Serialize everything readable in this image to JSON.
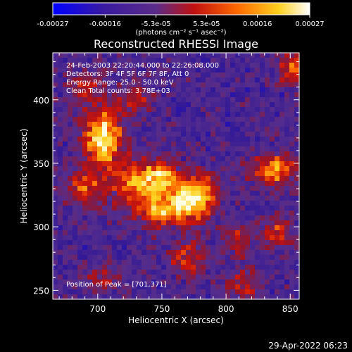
{
  "chart_data": {
    "type": "heatmap",
    "title": "Reconstructed RHESSI Image",
    "xlabel": "Heliocentric X (arcsec)",
    "ylabel": "Heliocentric Y (arcsec)",
    "xlim": [
      665,
      857
    ],
    "ylim": [
      243,
      437
    ],
    "x_ticks": [
      700,
      750,
      800,
      850
    ],
    "y_ticks": [
      250,
      300,
      350,
      400
    ],
    "colorbar": {
      "range": [
        -0.00027,
        0.00027
      ],
      "tick_values": [
        -0.00027,
        -0.00016,
        -5.3e-05,
        5.3e-05,
        0.00016,
        0.00027
      ],
      "tick_labels": [
        "-0.00027",
        "-0.00016",
        "-5.3e-05",
        "5.3e-05",
        "0.00016",
        "0.00027"
      ],
      "units_label": "(photons cm⁻² s⁻¹ asec⁻²)",
      "colors": [
        "#0000ff",
        "#3a1aa0",
        "#5a2c8a",
        "#c01010",
        "#ff6a00",
        "#ffd020",
        "#ffffff"
      ]
    },
    "annotations": [
      "24-Feb-2003 22:20:44.000 to 22:26:08.000",
      "Detectors: 3F 4F 5F 6F 7F 8F, Att 0",
      "Energy Range: 25.0 - 50.0 keV",
      "Clean     Total counts: 3.78E+03",
      "Position of Peak = [701,371]"
    ],
    "peak": {
      "x": 701,
      "y": 371
    },
    "sources": [
      {
        "x": 704,
        "y": 370,
        "sx": 10,
        "sy": 16,
        "amp": 1.0
      },
      {
        "x": 733,
        "y": 333,
        "sx": 14,
        "sy": 14,
        "amp": 0.75
      },
      {
        "x": 765,
        "y": 318,
        "sx": 10,
        "sy": 10,
        "amp": 0.85
      },
      {
        "x": 781,
        "y": 325,
        "sx": 10,
        "sy": 12,
        "amp": 0.7
      },
      {
        "x": 752,
        "y": 340,
        "sx": 8,
        "sy": 8,
        "amp": 0.55
      },
      {
        "x": 745,
        "y": 310,
        "sx": 8,
        "sy": 8,
        "amp": 0.55
      },
      {
        "x": 838,
        "y": 345,
        "sx": 12,
        "sy": 8,
        "amp": 0.75
      },
      {
        "x": 852,
        "y": 425,
        "sx": 8,
        "sy": 8,
        "amp": 0.6
      },
      {
        "x": 690,
        "y": 330,
        "sx": 10,
        "sy": 10,
        "amp": 0.5
      },
      {
        "x": 770,
        "y": 275,
        "sx": 10,
        "sy": 10,
        "amp": 0.45
      },
      {
        "x": 810,
        "y": 290,
        "sx": 8,
        "sy": 8,
        "amp": 0.45
      },
      {
        "x": 840,
        "y": 295,
        "sx": 8,
        "sy": 8,
        "amp": 0.5
      },
      {
        "x": 690,
        "y": 410,
        "sx": 9,
        "sy": 9,
        "amp": 0.4
      },
      {
        "x": 730,
        "y": 400,
        "sx": 9,
        "sy": 9,
        "amp": 0.4
      },
      {
        "x": 705,
        "y": 260,
        "sx": 10,
        "sy": 8,
        "amp": 0.35
      },
      {
        "x": 815,
        "y": 255,
        "sx": 9,
        "sy": 9,
        "amp": 0.4
      }
    ]
  },
  "footer": {
    "timestamp": "29-Apr-2022 06:23"
  }
}
